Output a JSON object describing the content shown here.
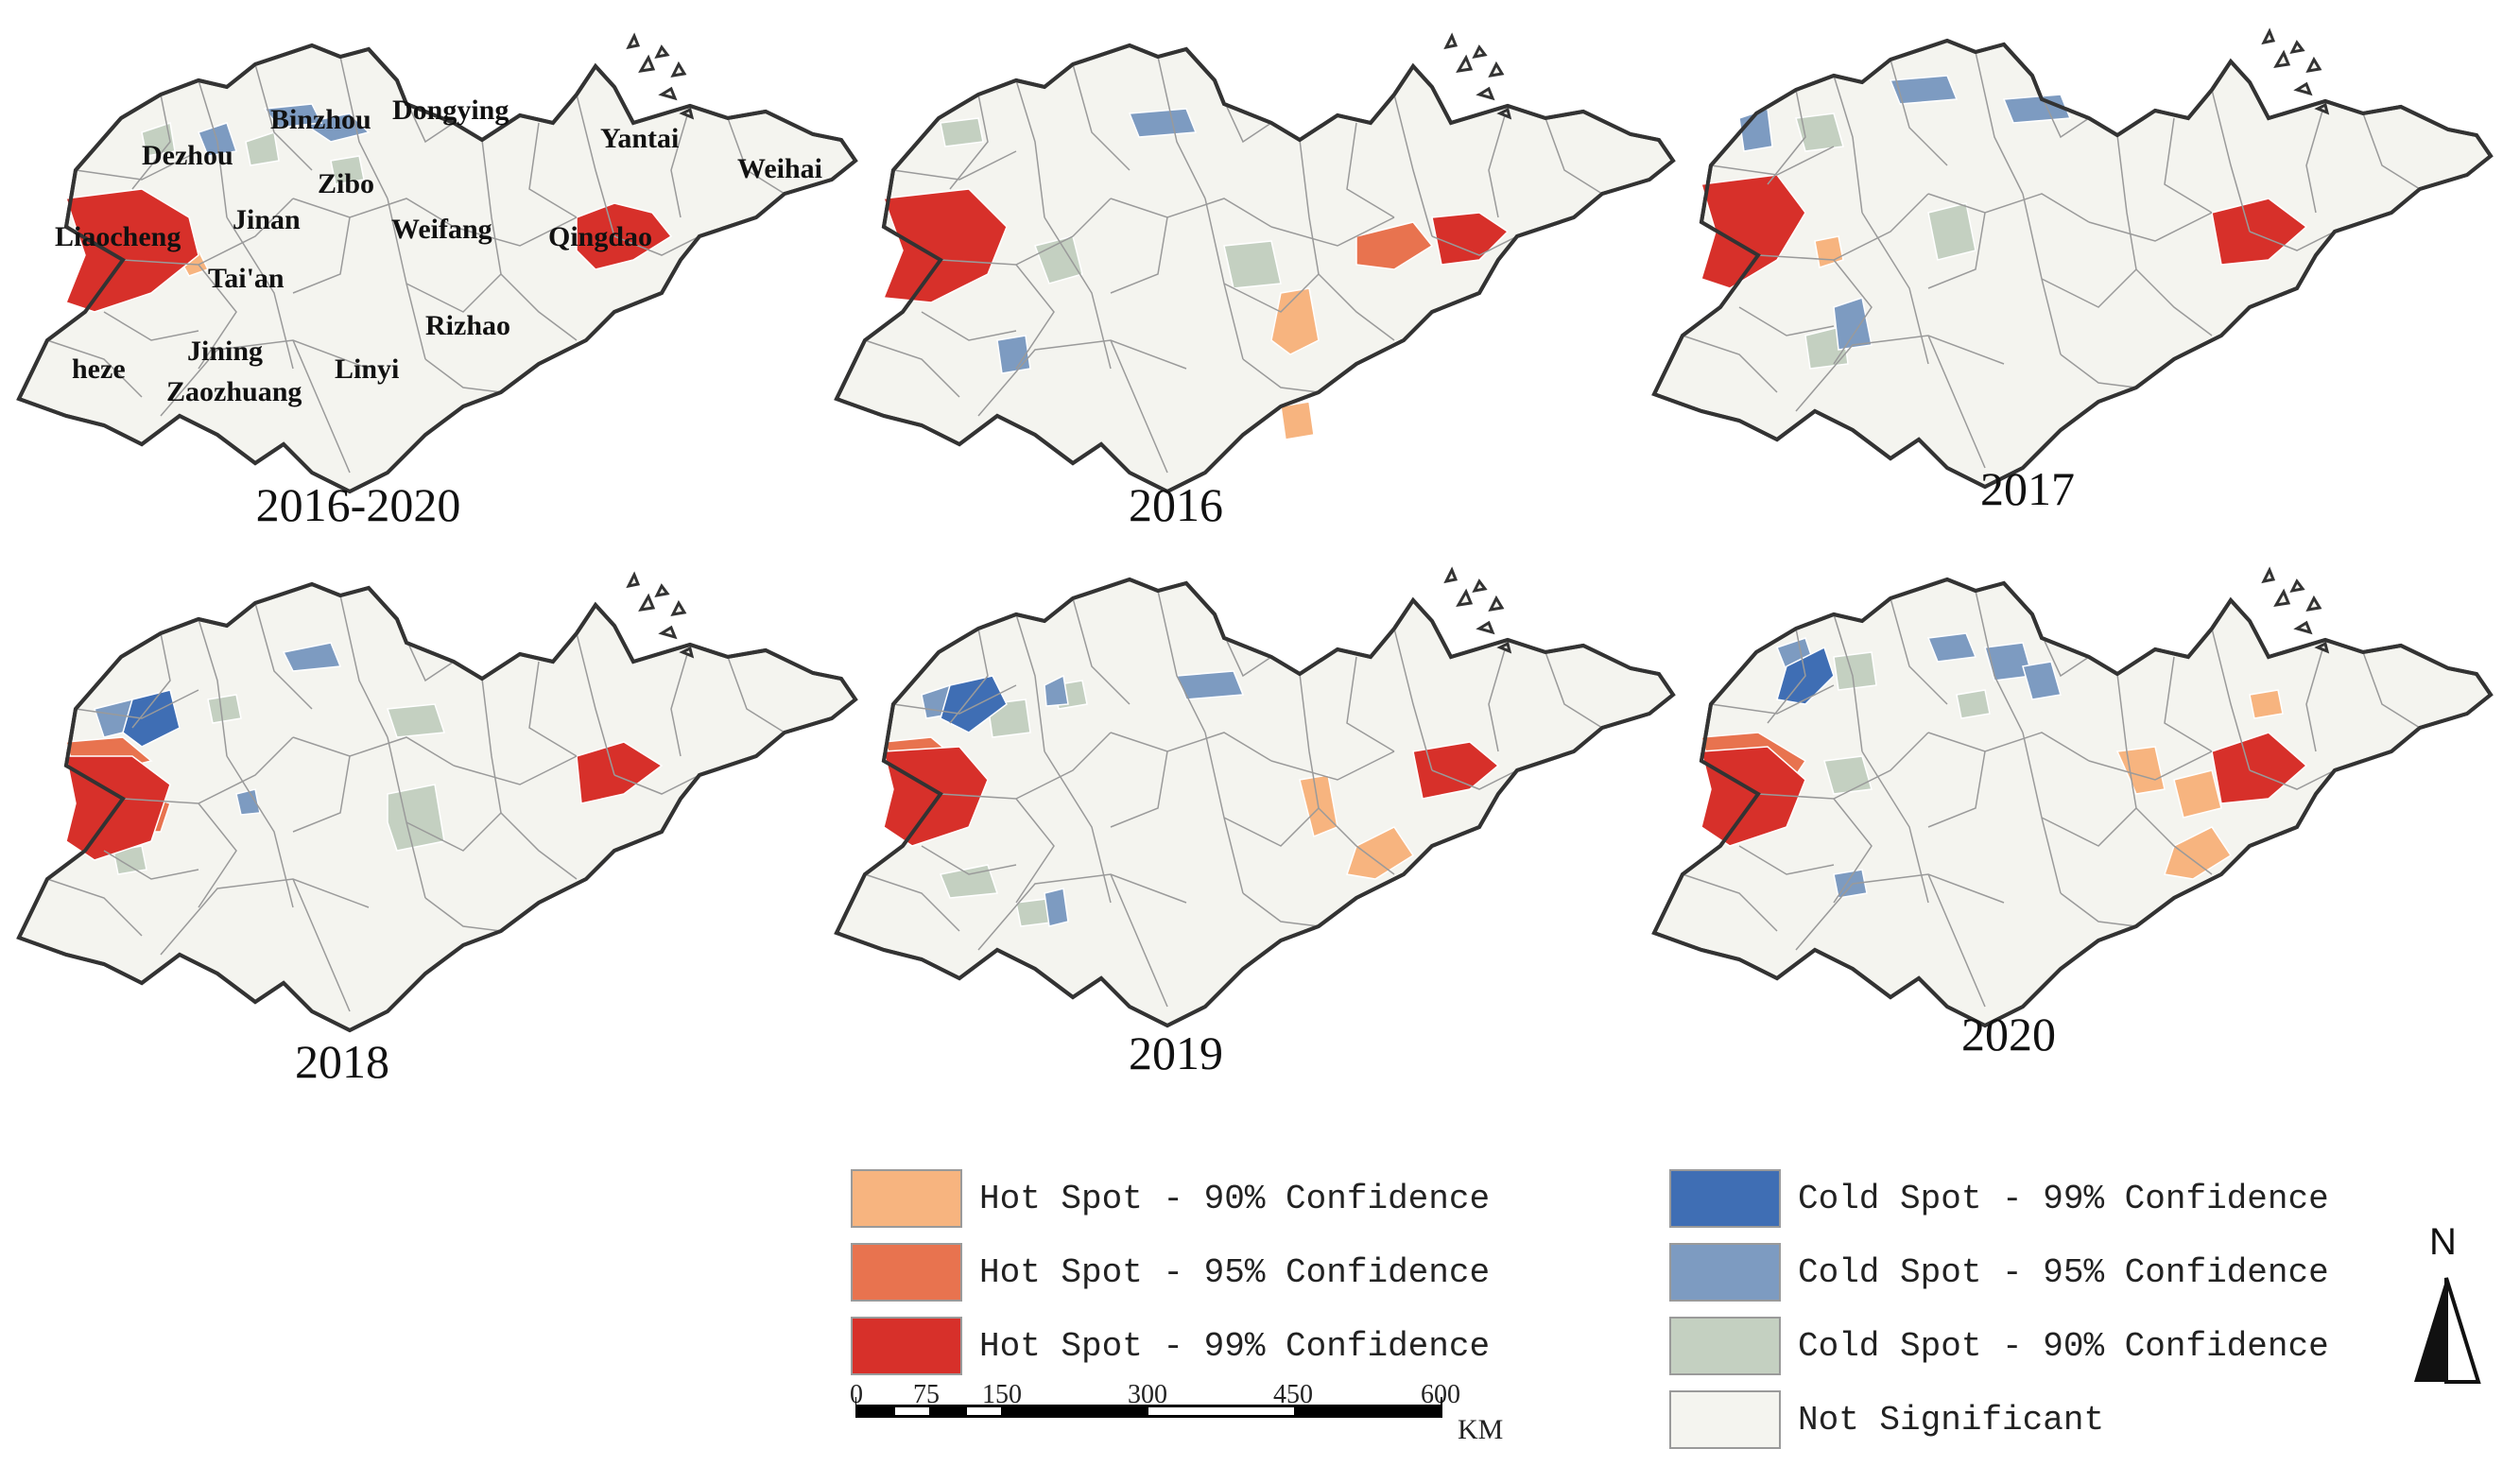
{
  "panels": [
    {
      "label": "2016-2020",
      "hot99": true,
      "hot95": false,
      "hot90": true,
      "cold99": false,
      "cold95": true,
      "cold90": true
    },
    {
      "label": "2016",
      "hot99": true,
      "hot95": true,
      "hot90": true,
      "cold99": false,
      "cold95": true,
      "cold90": true
    },
    {
      "label": "2017",
      "hot99": true,
      "hot95": false,
      "hot90": true,
      "cold99": false,
      "cold95": true,
      "cold90": true
    },
    {
      "label": "2018",
      "hot99": true,
      "hot95": true,
      "hot90": false,
      "cold99": true,
      "cold95": true,
      "cold90": true
    },
    {
      "label": "2019",
      "hot99": true,
      "hot95": true,
      "hot90": true,
      "cold99": true,
      "cold95": true,
      "cold90": true
    },
    {
      "label": "2020",
      "hot99": true,
      "hot95": true,
      "hot90": true,
      "cold99": true,
      "cold95": true,
      "cold90": true
    }
  ],
  "cities": [
    "Binzhou",
    "Dongying",
    "Dezhou",
    "Yantai",
    "Weihai",
    "Zibo",
    "Jinan",
    "Liaocheng",
    "Weifang",
    "Qingdao",
    "Tai'an",
    "Rizhao",
    "Jining",
    "heze",
    "Linyi",
    "Zaozhuang"
  ],
  "legend": {
    "hot90": "Hot Spot - 90% Confidence",
    "hot95": "Hot Spot - 95% Confidence",
    "hot99": "Hot Spot - 99% Confidence",
    "cold99": "Cold Spot - 99% Confidence",
    "cold95": "Cold Spot - 95% Confidence",
    "cold90": "Cold Spot - 90% Confidence",
    "ns": "Not Significant"
  },
  "colors": {
    "hot90": "#f7b47f",
    "hot95": "#e8734f",
    "hot99": "#d7302a",
    "cold99": "#3f6eb4",
    "cold95": "#7d9bc1",
    "cold90": "#c4d0c1",
    "ns": "#f4f4ef",
    "border": "#333333",
    "inner": "#9a9a9a"
  },
  "scale": {
    "ticks": [
      "0",
      "75",
      "150",
      "300",
      "450",
      "600"
    ],
    "unit": "KM"
  },
  "north": "N"
}
